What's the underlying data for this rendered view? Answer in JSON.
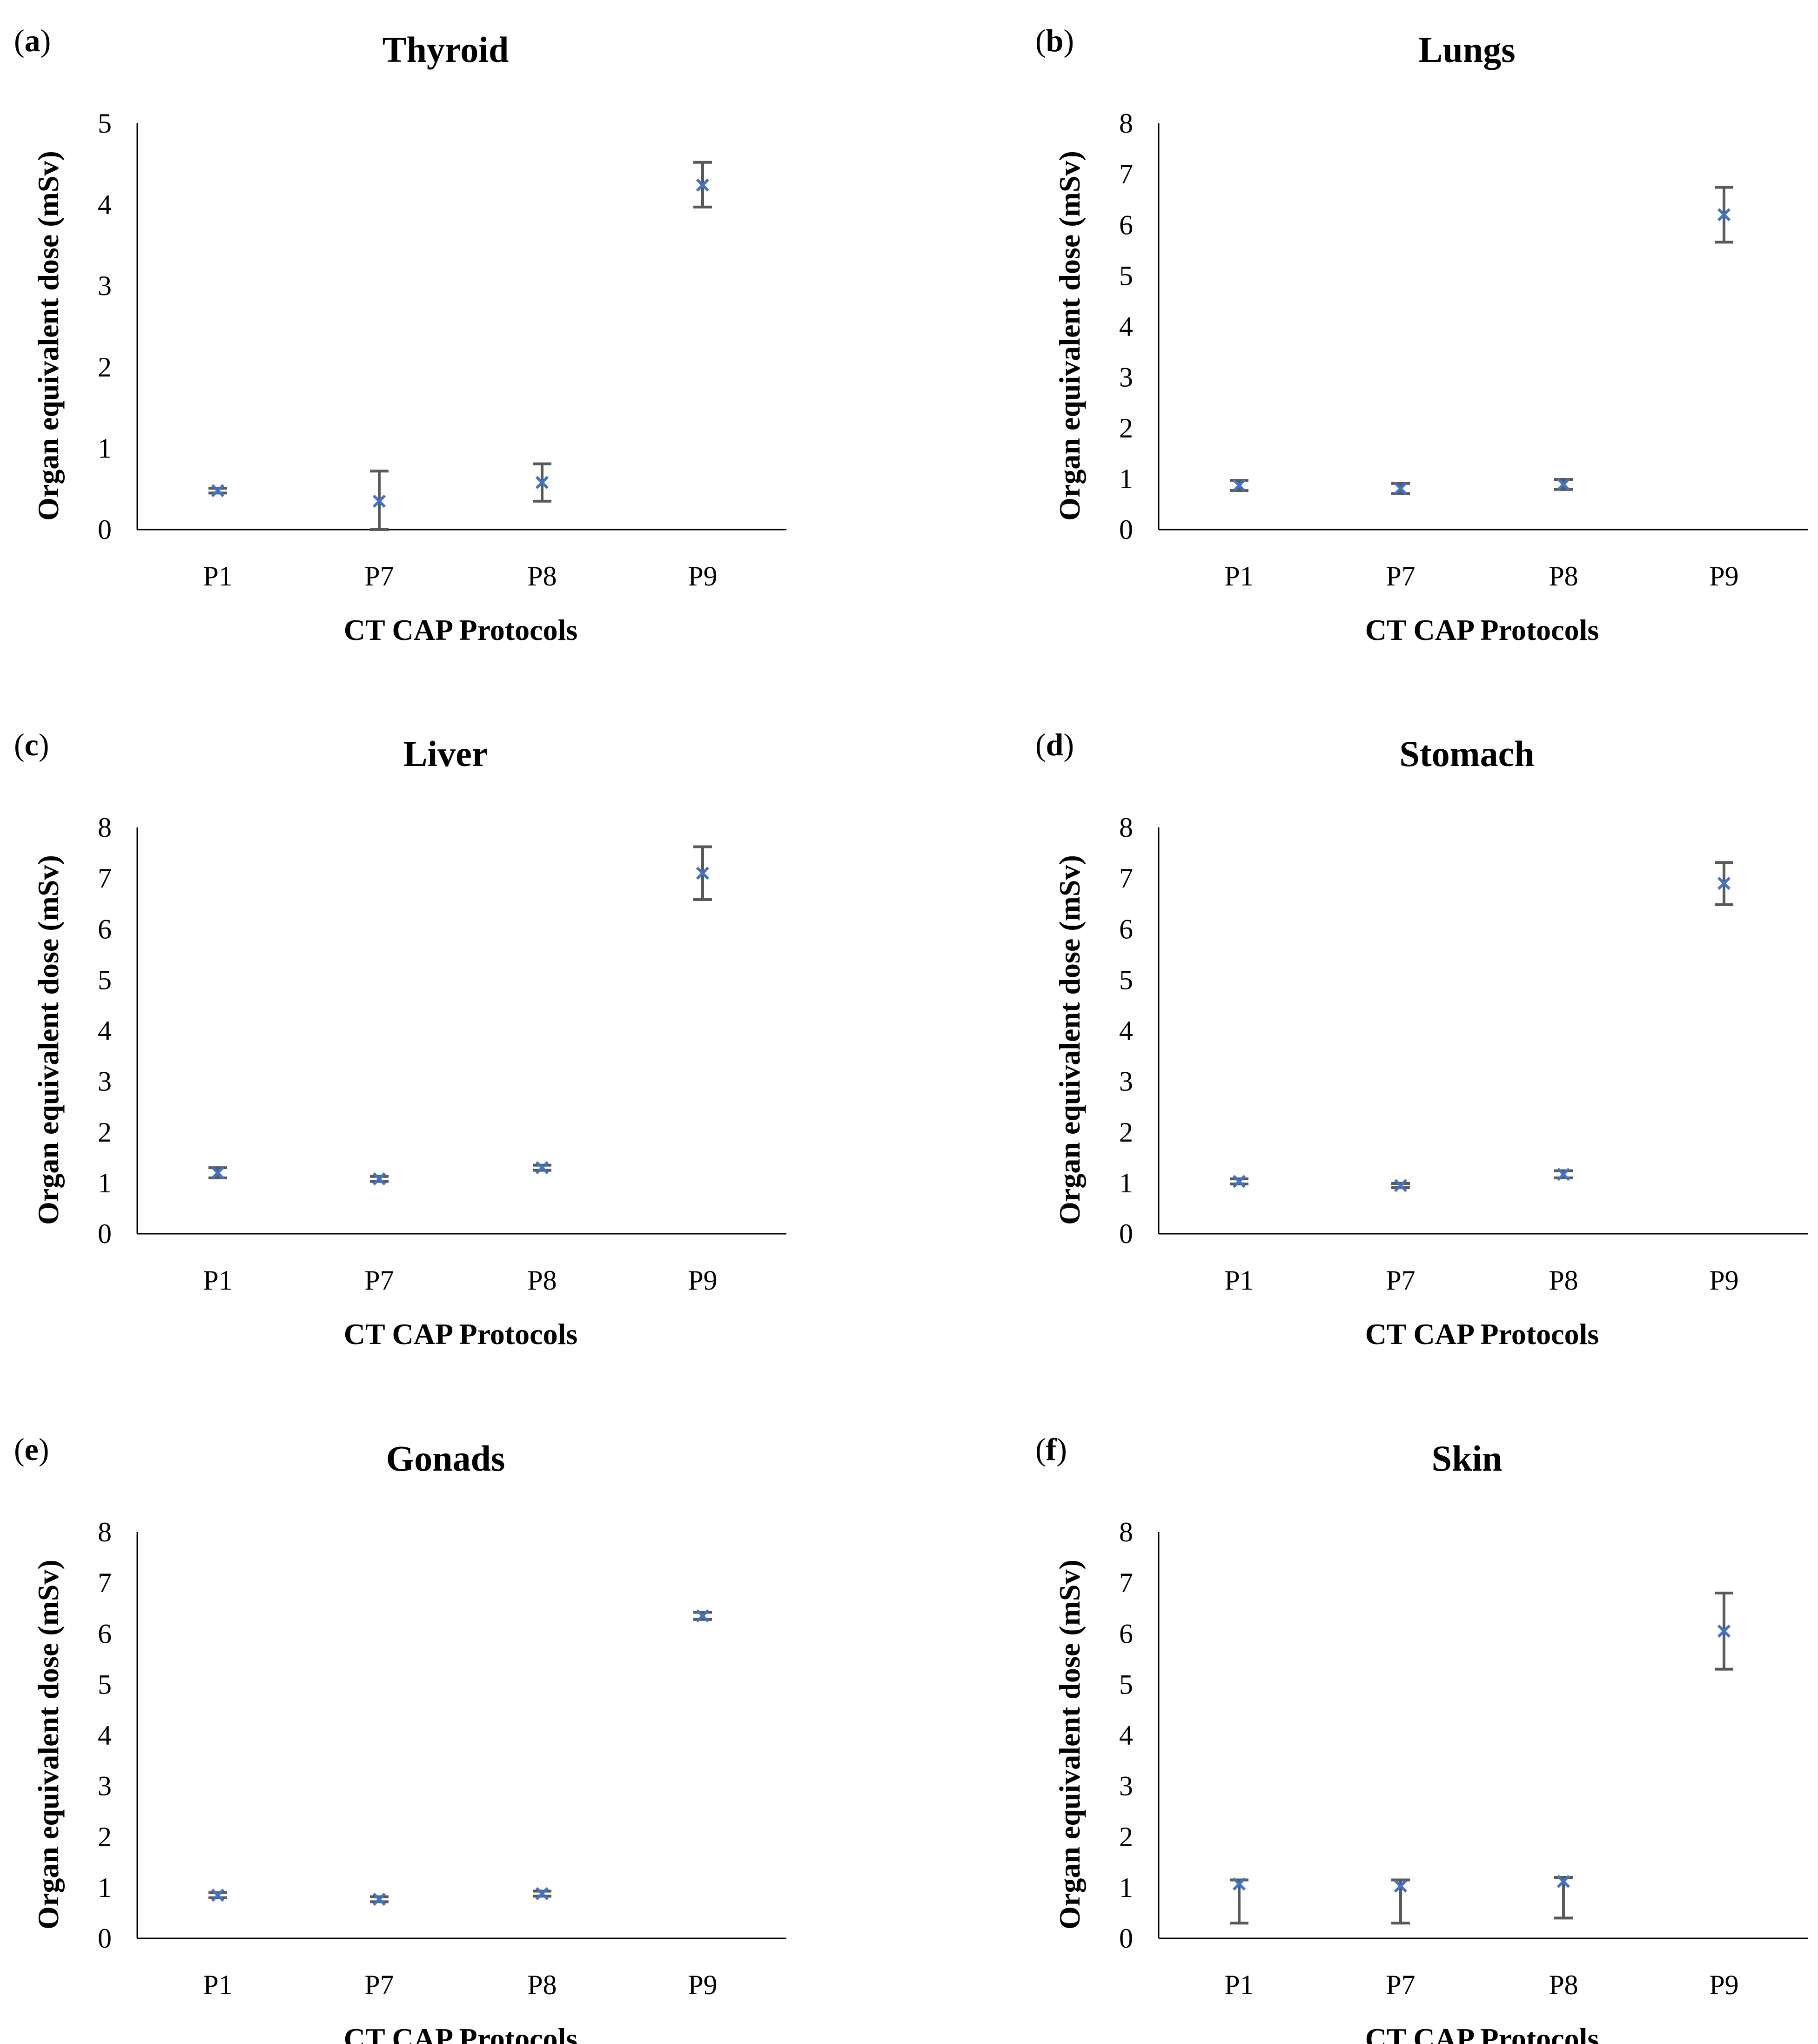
{
  "chart_data": [
    {
      "type": "scatter",
      "panel_label": "a",
      "title": "Thyroid",
      "xlabel": "CT CAP Protocols",
      "ylabel": "Organ equivalent dose (mSv)",
      "categories": [
        "P1",
        "P7",
        "P8",
        "P9"
      ],
      "values": [
        0.48,
        0.35,
        0.58,
        4.24
      ],
      "error_low": [
        0.45,
        0.0,
        0.35,
        3.97
      ],
      "error_high": [
        0.51,
        0.72,
        0.81,
        4.52
      ],
      "ylim": [
        0,
        5
      ],
      "yticks": [
        "0",
        "1",
        "2",
        "3",
        "4",
        "5"
      ]
    },
    {
      "type": "scatter",
      "panel_label": "b",
      "title": "Lungs",
      "xlabel": "CT CAP Protocols",
      "ylabel": "Organ equivalent dose (mSv)",
      "categories": [
        "P1",
        "P7",
        "P8",
        "P9"
      ],
      "values": [
        0.87,
        0.81,
        0.89,
        6.2
      ],
      "error_low": [
        0.77,
        0.71,
        0.79,
        5.66
      ],
      "error_high": [
        0.97,
        0.91,
        0.99,
        6.74
      ],
      "ylim": [
        0,
        8
      ],
      "yticks": [
        "0",
        "1",
        "2",
        "3",
        "4",
        "5",
        "6",
        "7",
        "8"
      ]
    },
    {
      "type": "scatter",
      "panel_label": "c",
      "title": "Liver",
      "xlabel": "CT CAP Protocols",
      "ylabel": "Organ equivalent dose (mSv)",
      "categories": [
        "P1",
        "P7",
        "P8",
        "P9"
      ],
      "values": [
        1.2,
        1.08,
        1.3,
        7.1
      ],
      "error_low": [
        1.1,
        1.03,
        1.25,
        6.58
      ],
      "error_high": [
        1.3,
        1.13,
        1.35,
        7.62
      ],
      "ylim": [
        0,
        8
      ],
      "yticks": [
        "0",
        "1",
        "2",
        "3",
        "4",
        "5",
        "6",
        "7",
        "8"
      ]
    },
    {
      "type": "scatter",
      "panel_label": "d",
      "title": "Stomach",
      "xlabel": "CT CAP Protocols",
      "ylabel": "Organ equivalent dose (mSv)",
      "categories": [
        "P1",
        "P7",
        "P8",
        "P9"
      ],
      "values": [
        1.03,
        0.95,
        1.17,
        6.9
      ],
      "error_low": [
        0.98,
        0.91,
        1.1,
        6.48
      ],
      "error_high": [
        1.08,
        0.99,
        1.24,
        7.31
      ],
      "ylim": [
        0,
        8
      ],
      "yticks": [
        "0",
        "1",
        "2",
        "3",
        "4",
        "5",
        "6",
        "7",
        "8"
      ]
    },
    {
      "type": "scatter",
      "panel_label": "e",
      "title": "Gonads",
      "xlabel": "CT CAP Protocols",
      "ylabel": "Organ equivalent dose (mSv)",
      "categories": [
        "P1",
        "P7",
        "P8",
        "P9"
      ],
      "values": [
        0.85,
        0.77,
        0.88,
        6.35
      ],
      "error_low": [
        0.8,
        0.72,
        0.83,
        6.28
      ],
      "error_high": [
        0.9,
        0.82,
        0.93,
        6.42
      ],
      "ylim": [
        0,
        8
      ],
      "yticks": [
        "0",
        "1",
        "2",
        "3",
        "4",
        "5",
        "6",
        "7",
        "8"
      ]
    },
    {
      "type": "scatter",
      "panel_label": "f",
      "title": "Skin",
      "xlabel": "CT CAP Protocols",
      "ylabel": "Organ equivalent dose (mSv)",
      "categories": [
        "P1",
        "P7",
        "P8",
        "P9"
      ],
      "values": [
        1.07,
        1.03,
        1.12,
        6.05
      ],
      "error_low": [
        0.3,
        0.3,
        0.4,
        5.3
      ],
      "error_high": [
        1.15,
        1.15,
        1.2,
        6.8
      ],
      "ylim": [
        0,
        8
      ],
      "yticks": [
        "0",
        "1",
        "2",
        "3",
        "4",
        "5",
        "6",
        "7",
        "8"
      ]
    }
  ],
  "colors": {
    "marker": "#4472C4",
    "errorbar": "#595959",
    "axis": "#000000"
  }
}
